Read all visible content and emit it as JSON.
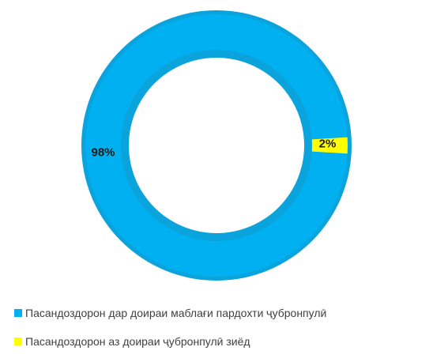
{
  "chart_data": {
    "type": "pie",
    "variant": "donut",
    "series": [
      {
        "name": "Пасандоздорон дар доираи маблағи пардохти ҷубронпулӣ",
        "value": 98,
        "label": "98%",
        "color": "#00b0f0"
      },
      {
        "name": "Пасандоздорон аз доираи  ҷубронпулӣ зиёд",
        "value": 2,
        "label": "2%",
        "color": "#ffff00"
      }
    ],
    "legend_position": "bottom-left",
    "start_angle_deg": 0,
    "direction": "clockwise-from-3-oclock"
  },
  "legend": {
    "items": [
      {
        "label": "Пасандоздорон дар доираи маблағи пардохти ҷубронпулӣ",
        "color": "#00b0f0"
      },
      {
        "label": "Пасандоздорон аз доираи  ҷубронпулӣ зиёд",
        "color": "#ffff00"
      }
    ]
  }
}
